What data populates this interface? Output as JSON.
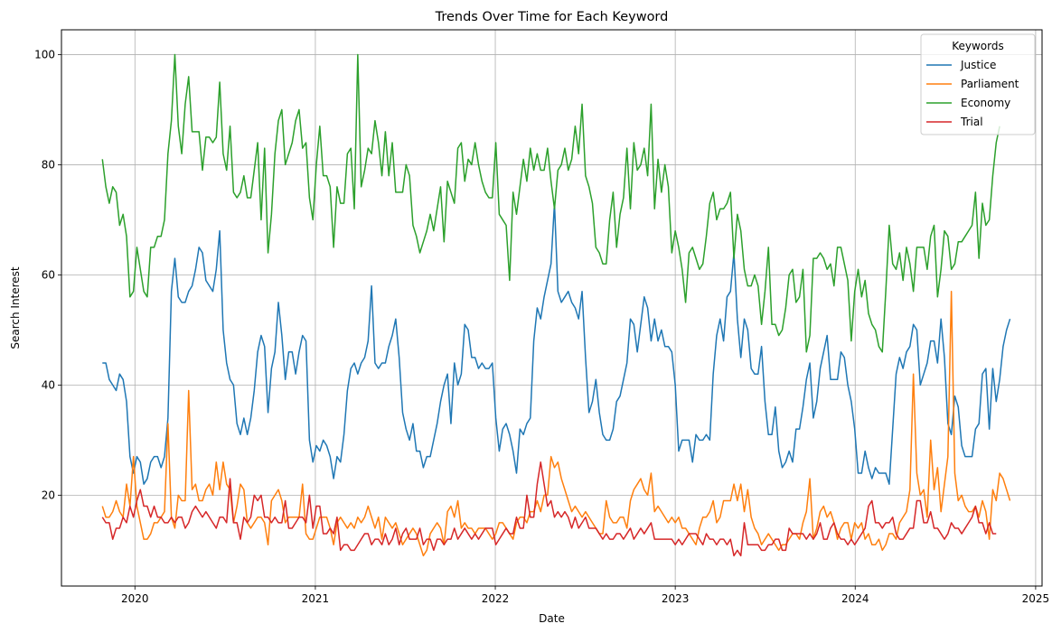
{
  "chart_data": {
    "type": "line",
    "title": "Trends Over Time for Each Keyword",
    "xlabel": "Date",
    "ylabel": "Search Interest",
    "x_start": "2019-10-27",
    "x_step_days": 7,
    "xlim": [
      "2019-08-05",
      "2025-01-14"
    ],
    "ylim": [
      3.5,
      104.5
    ],
    "x_ticks": [
      "2020-01-01",
      "2021-01-01",
      "2022-01-01",
      "2023-01-01",
      "2024-01-01",
      "2025-01-01"
    ],
    "x_tick_labels": [
      "2020",
      "2021",
      "2022",
      "2023",
      "2024",
      "2025"
    ],
    "y_ticks": [
      20,
      40,
      60,
      80,
      100
    ],
    "y_tick_labels": [
      "20",
      "40",
      "60",
      "80",
      "100"
    ],
    "grid": true,
    "legend": {
      "title": "Keywords",
      "position": "top-right"
    },
    "series": [
      {
        "name": "Justice",
        "color": "#1f77b4",
        "values": [
          44,
          44,
          41,
          40,
          39,
          42,
          41,
          37,
          27,
          24,
          27,
          26,
          22,
          23,
          26,
          27,
          27,
          25,
          27,
          34,
          57,
          63,
          56,
          55,
          55,
          57,
          58,
          61,
          65,
          64,
          59,
          58,
          57,
          61,
          68,
          50,
          44,
          41,
          40,
          33,
          31,
          34,
          31,
          34,
          39,
          46,
          49,
          47,
          35,
          43,
          46,
          55,
          49,
          41,
          46,
          46,
          42,
          46,
          49,
          48,
          30,
          26,
          29,
          28,
          30,
          29,
          27,
          23,
          27,
          26,
          31,
          39,
          43,
          44,
          42,
          44,
          45,
          48,
          58,
          44,
          43,
          44,
          44,
          47,
          49,
          52,
          45,
          35,
          32,
          30,
          33,
          28,
          28,
          25,
          27,
          27,
          30,
          33,
          37,
          40,
          42,
          33,
          44,
          40,
          42,
          51,
          50,
          45,
          45,
          43,
          44,
          43,
          43,
          44,
          34,
          28,
          32,
          33,
          31,
          28,
          24,
          32,
          31,
          33,
          34,
          48,
          54,
          52,
          56,
          59,
          62,
          73,
          57,
          55,
          56,
          57,
          55,
          54,
          52,
          57,
          45,
          35,
          37,
          41,
          35,
          31,
          30,
          30,
          32,
          37,
          38,
          41,
          44,
          52,
          51,
          46,
          51,
          56,
          54,
          48,
          52,
          48,
          50,
          47,
          47,
          46,
          40,
          28,
          30,
          30,
          30,
          26,
          31,
          30,
          30,
          31,
          30,
          42,
          49,
          52,
          48,
          56,
          57,
          64,
          52,
          45,
          52,
          50,
          43,
          42,
          42,
          47,
          37,
          31,
          31,
          36,
          28,
          25,
          26,
          28,
          26,
          32,
          32,
          36,
          41,
          44,
          34,
          37,
          43,
          46,
          49,
          41,
          41,
          41,
          46,
          45,
          40,
          37,
          32,
          24,
          24,
          28,
          25,
          23,
          25,
          24,
          24,
          24,
          22,
          32,
          42,
          45,
          43,
          46,
          47,
          51,
          50,
          40,
          42,
          44,
          48,
          48,
          44,
          52,
          45,
          33,
          31,
          38,
          36,
          29,
          27,
          27,
          27,
          32,
          33,
          42,
          43,
          32,
          43,
          37,
          41,
          47,
          50,
          52
        ]
      },
      {
        "name": "Parliament",
        "color": "#ff7f0e",
        "values": [
          18,
          16,
          16,
          17,
          19,
          17,
          16,
          22,
          18,
          27,
          18,
          15,
          12,
          12,
          13,
          15,
          15,
          16,
          17,
          33,
          16,
          14,
          20,
          19,
          19,
          39,
          21,
          22,
          19,
          19,
          21,
          22,
          20,
          26,
          21,
          26,
          22,
          21,
          15,
          18,
          22,
          21,
          15,
          14,
          15,
          16,
          16,
          15,
          11,
          19,
          20,
          21,
          19,
          15,
          16,
          16,
          16,
          16,
          22,
          13,
          12,
          12,
          14,
          16,
          16,
          16,
          14,
          11,
          15,
          16,
          15,
          14,
          15,
          14,
          16,
          15,
          16,
          18,
          16,
          14,
          16,
          12,
          16,
          15,
          14,
          15,
          13,
          11,
          12,
          13,
          14,
          13,
          11,
          9,
          10,
          13,
          14,
          15,
          14,
          11,
          17,
          18,
          16,
          19,
          14,
          15,
          14,
          14,
          13,
          14,
          14,
          14,
          13,
          12,
          13,
          15,
          15,
          14,
          13,
          12,
          15,
          16,
          16,
          15,
          17,
          17,
          19,
          17,
          20,
          20,
          27,
          25,
          26,
          23,
          21,
          19,
          17,
          18,
          17,
          16,
          17,
          16,
          15,
          14,
          13,
          13,
          19,
          16,
          15,
          15,
          16,
          16,
          14,
          19,
          21,
          22,
          23,
          21,
          20,
          24,
          17,
          18,
          17,
          16,
          15,
          16,
          15,
          16,
          14,
          14,
          13,
          12,
          11,
          14,
          16,
          16,
          17,
          19,
          15,
          16,
          19,
          19,
          19,
          22,
          19,
          22,
          17,
          21,
          16,
          14,
          13,
          11,
          12,
          13,
          12,
          11,
          10,
          11,
          11,
          12,
          13,
          13,
          12,
          15,
          17,
          23,
          12,
          14,
          17,
          18,
          16,
          17,
          15,
          12,
          14,
          15,
          15,
          12,
          15,
          14,
          15,
          12,
          13,
          11,
          11,
          12,
          10,
          11,
          13,
          13,
          12,
          15,
          16,
          17,
          21,
          42,
          24,
          20,
          21,
          16,
          30,
          21,
          25,
          17,
          22,
          27,
          57,
          24,
          19,
          20,
          18,
          17,
          17,
          18,
          16,
          19,
          17,
          12,
          21,
          19,
          24,
          23,
          21,
          19
        ]
      },
      {
        "name": "Economy",
        "color": "#2ca02c",
        "values": [
          81,
          76,
          73,
          76,
          75,
          69,
          71,
          67,
          56,
          57,
          65,
          61,
          57,
          56,
          65,
          65,
          67,
          67,
          70,
          82,
          88,
          100,
          87,
          82,
          91,
          96,
          86,
          86,
          86,
          79,
          85,
          85,
          84,
          85,
          95,
          82,
          79,
          87,
          75,
          74,
          75,
          78,
          74,
          74,
          79,
          84,
          70,
          83,
          64,
          71,
          82,
          88,
          90,
          80,
          82,
          84,
          88,
          90,
          83,
          84,
          74,
          70,
          80,
          87,
          78,
          78,
          76,
          65,
          76,
          73,
          73,
          82,
          83,
          72,
          100,
          76,
          79,
          83,
          82,
          88,
          84,
          78,
          86,
          78,
          84,
          75,
          75,
          75,
          80,
          78,
          69,
          67,
          64,
          66,
          68,
          71,
          68,
          72,
          76,
          66,
          77,
          75,
          73,
          83,
          84,
          77,
          81,
          80,
          84,
          80,
          77,
          75,
          74,
          74,
          84,
          71,
          70,
          69,
          59,
          75,
          71,
          76,
          81,
          77,
          83,
          79,
          82,
          79,
          79,
          83,
          77,
          72,
          79,
          80,
          83,
          79,
          81,
          87,
          82,
          91,
          78,
          76,
          73,
          65,
          64,
          62,
          62,
          70,
          75,
          65,
          71,
          74,
          83,
          72,
          84,
          79,
          80,
          83,
          78,
          91,
          72,
          81,
          75,
          80,
          76,
          64,
          68,
          65,
          61,
          55,
          64,
          65,
          63,
          61,
          62,
          67,
          73,
          75,
          70,
          72,
          72,
          73,
          75,
          63,
          71,
          68,
          61,
          58,
          58,
          60,
          58,
          51,
          57,
          65,
          51,
          51,
          49,
          50,
          54,
          60,
          61,
          55,
          56,
          61,
          46,
          49,
          63,
          63,
          64,
          63,
          61,
          62,
          58,
          65,
          65,
          62,
          59,
          48,
          57,
          61,
          56,
          59,
          53,
          51,
          50,
          47,
          46,
          57,
          69,
          62,
          61,
          64,
          59,
          65,
          62,
          57,
          65,
          65,
          65,
          61,
          67,
          69,
          56,
          61,
          68,
          67,
          61,
          62,
          66,
          66,
          67,
          68,
          69,
          75,
          63,
          73,
          69,
          70,
          78,
          84,
          87
        ]
      },
      {
        "name": "Trial",
        "color": "#d62728",
        "values": [
          16,
          15,
          15,
          12,
          14,
          14,
          16,
          15,
          18,
          16,
          19,
          21,
          18,
          18,
          16,
          18,
          16,
          16,
          15,
          15,
          16,
          15,
          16,
          16,
          14,
          15,
          17,
          18,
          17,
          16,
          17,
          16,
          15,
          14,
          16,
          16,
          15,
          23,
          15,
          15,
          12,
          16,
          15,
          16,
          20,
          19,
          20,
          16,
          16,
          15,
          16,
          15,
          15,
          19,
          14,
          14,
          15,
          16,
          16,
          15,
          20,
          14,
          18,
          18,
          13,
          13,
          14,
          13,
          16,
          10,
          11,
          11,
          10,
          10,
          11,
          12,
          13,
          13,
          11,
          12,
          12,
          11,
          13,
          11,
          12,
          14,
          11,
          13,
          14,
          12,
          12,
          12,
          14,
          11,
          12,
          12,
          10,
          12,
          12,
          11,
          12,
          12,
          14,
          12,
          13,
          14,
          13,
          12,
          13,
          12,
          13,
          14,
          14,
          14,
          11,
          12,
          13,
          14,
          13,
          13,
          16,
          14,
          14,
          20,
          16,
          16,
          22,
          26,
          22,
          18,
          19,
          16,
          17,
          16,
          17,
          16,
          14,
          16,
          14,
          15,
          16,
          14,
          14,
          14,
          13,
          12,
          13,
          12,
          12,
          13,
          13,
          12,
          13,
          14,
          12,
          13,
          14,
          13,
          14,
          15,
          12,
          12,
          12,
          12,
          12,
          12,
          11,
          12,
          11,
          12,
          13,
          13,
          13,
          12,
          11,
          13,
          12,
          12,
          11,
          12,
          12,
          11,
          12,
          9,
          10,
          9,
          15,
          11,
          11,
          11,
          11,
          10,
          10,
          11,
          11,
          12,
          12,
          10,
          10,
          14,
          13,
          13,
          13,
          13,
          12,
          13,
          12,
          13,
          15,
          12,
          12,
          14,
          15,
          13,
          12,
          12,
          11,
          12,
          11,
          12,
          13,
          14,
          18,
          19,
          15,
          15,
          14,
          15,
          15,
          16,
          13,
          12,
          12,
          13,
          14,
          14,
          19,
          19,
          15,
          15,
          17,
          14,
          14,
          13,
          12,
          13,
          15,
          14,
          14,
          13,
          14,
          15,
          16,
          18,
          15,
          15,
          13,
          15,
          13,
          13
        ]
      }
    ]
  }
}
